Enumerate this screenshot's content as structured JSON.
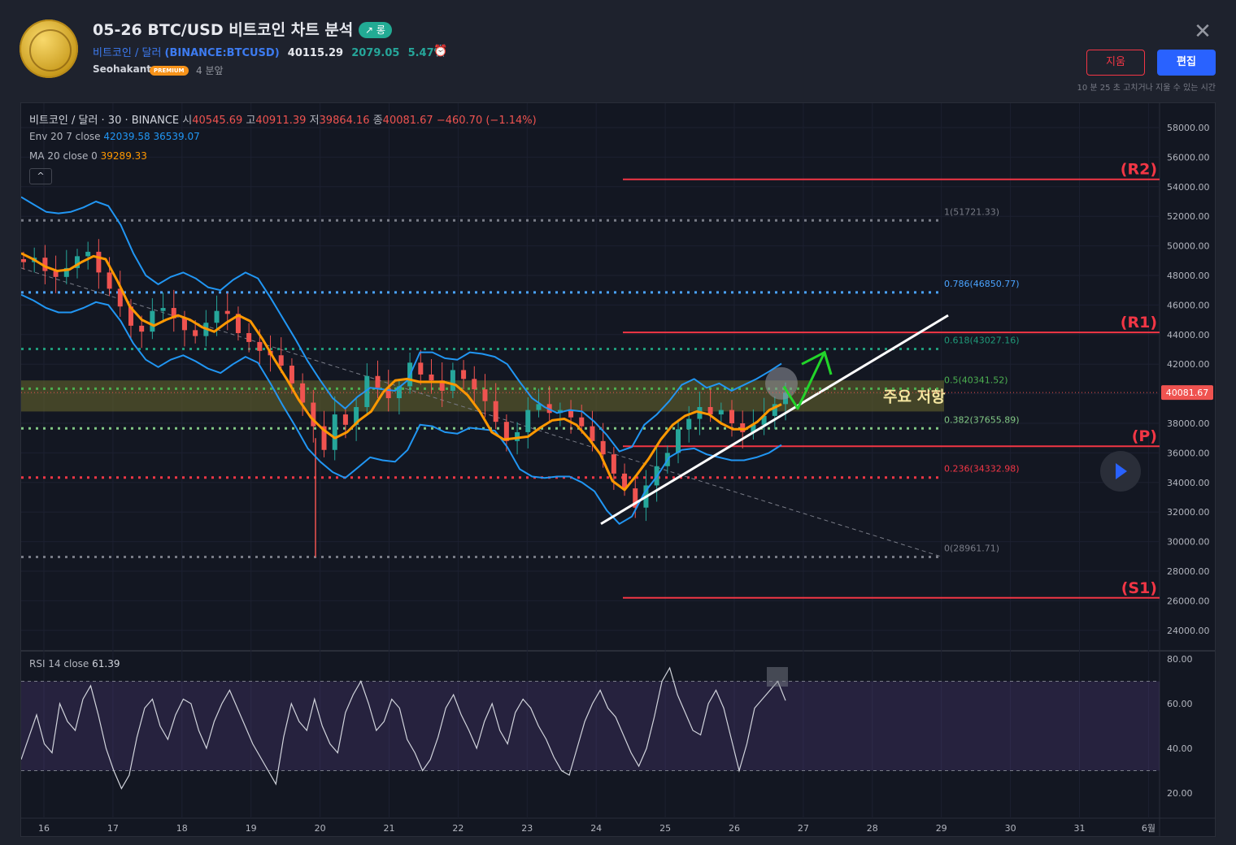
{
  "header": {
    "title": "05-26 BTC/USD 비트코인 차트 분석",
    "badge": "↗ 롱",
    "symbol_name": "비트코인 / 달러",
    "symbol_exchange": "(BINANCE:BTCUSD)",
    "last_price": "40115.29",
    "change": "2079.05",
    "change_pct": "5.47%",
    "author": "Seohakant",
    "premium_label": "PREMIUM",
    "time_ago": "4 분앞",
    "delete_label": "지움",
    "edit_label": "편집",
    "note": "10 분 25 초 고치거나 지울 수 있는 시간"
  },
  "legend": {
    "symbol": "비트코인 / 달러 · 30 · BINANCE",
    "o_label": "시",
    "o": "40545.69",
    "h_label": "고",
    "h": "40911.39",
    "l_label": "저",
    "l": "39864.16",
    "c_label": "종",
    "c": "40081.67",
    "chg": "−460.70 (−1.14%)",
    "env_label": "Env 20 7 close",
    "env_upper": "42039.58",
    "env_lower": "36539.07",
    "ma_label": "MA 20 close 0",
    "ma_value": "39289.33",
    "rsi_label": "RSI 14 close",
    "rsi_value": "61.39",
    "collapse": "^"
  },
  "colors": {
    "up": "#26a69a",
    "down": "#ef5350",
    "env": "#2196f3",
    "ma": "#ff9800",
    "rsi": "#d1d4dc",
    "resistance": "#f23645",
    "zone": "#6b6a2e",
    "trendline": "#ffffff",
    "arrow": "#22d42a"
  },
  "chart_data": {
    "type": "candlestick",
    "price_axis": {
      "min": 23000,
      "max": 59000,
      "ticks": [
        "58000.00",
        "56000.00",
        "54000.00",
        "52000.00",
        "50000.00",
        "48000.00",
        "46000.00",
        "44000.00",
        "42000.00",
        "40000.00",
        "38000.00",
        "36000.00",
        "34000.00",
        "32000.00",
        "30000.00",
        "28000.00",
        "26000.00",
        "24000.00"
      ],
      "last_price_label": "40081.67",
      "last_price": 40081.67
    },
    "time_axis": {
      "ticks": [
        "16",
        "17",
        "18",
        "19",
        "20",
        "21",
        "22",
        "23",
        "24",
        "25",
        "26",
        "27",
        "28",
        "29",
        "30",
        "31",
        "6월"
      ]
    },
    "fib_levels": [
      {
        "label": "1(51721.33)",
        "price": 51721.33,
        "color": "#787b86"
      },
      {
        "label": "0.786(46850.77)",
        "price": 46850.77,
        "color": "#4aa3ff"
      },
      {
        "label": "0.618(43027.16)",
        "price": 43027.16,
        "color": "#1f9b7a"
      },
      {
        "label": "0.5(40341.52)",
        "price": 40341.52,
        "color": "#4caf50"
      },
      {
        "label": "0.382(37655.89)",
        "price": 37655.89,
        "color": "#81c784"
      },
      {
        "label": "0.236(34332.98)",
        "price": 34332.98,
        "color": "#f23645"
      },
      {
        "label": "0(28961.71)",
        "price": 28961.71,
        "color": "#787b86"
      }
    ],
    "sr_levels": [
      {
        "label": "(R2)",
        "price": 54500
      },
      {
        "label": "(R1)",
        "price": 44150
      },
      {
        "label": "(P)",
        "price": 36450
      },
      {
        "label": "(S1)",
        "price": 26200
      }
    ],
    "zone": {
      "top": 40900,
      "bottom": 38800,
      "label": "주요 저항"
    },
    "close_series": [
      48900,
      49200,
      48300,
      47900,
      48500,
      49300,
      49600,
      48200,
      47100,
      45900,
      44600,
      44200,
      45600,
      45800,
      45100,
      44300,
      43900,
      44800,
      45600,
      45400,
      44100,
      43500,
      42900,
      42600,
      41900,
      40700,
      39400,
      37800,
      36200,
      38600,
      37900,
      39100,
      41200,
      40400,
      39700,
      40500,
      42100,
      41300,
      40900,
      40200,
      41600,
      41000,
      40300,
      39500,
      38100,
      36800,
      37400,
      38900,
      39300,
      38700,
      38900,
      38400,
      37800,
      36800,
      35900,
      34600,
      33600,
      32300,
      33800,
      35100,
      36000,
      37600,
      38300,
      39100,
      38600,
      38900,
      38000,
      37400,
      37900,
      38500,
      39300,
      40081.67
    ],
    "upper_band": [
      53300,
      52800,
      52300,
      52200,
      52300,
      52600,
      53000,
      52700,
      51400,
      49500,
      48000,
      47400,
      47900,
      48200,
      47800,
      47200,
      47000,
      47700,
      48200,
      47800,
      46500,
      45100,
      43700,
      42200,
      40900,
      39700,
      39000,
      39800,
      40400,
      40300,
      40200,
      40900,
      42800,
      42800,
      42400,
      42300,
      42800,
      42700,
      42500,
      42000,
      40800,
      39700,
      39100,
      38700,
      38900,
      38800,
      38100,
      37200,
      36100,
      36400,
      37900,
      38600,
      39500,
      40600,
      41000,
      40400,
      40700,
      40200,
      40600,
      41000,
      41500,
      42039.58
    ],
    "lower_band": [
      46700,
      46300,
      45800,
      45500,
      45500,
      45800,
      46200,
      46000,
      44900,
      43400,
      42300,
      41800,
      42300,
      42600,
      42200,
      41700,
      41400,
      42000,
      42500,
      42100,
      40700,
      39200,
      37800,
      36300,
      35400,
      34700,
      34300,
      35000,
      35700,
      35500,
      35400,
      36200,
      37900,
      37800,
      37400,
      37300,
      37700,
      37600,
      37500,
      36400,
      34900,
      34400,
      34300,
      34400,
      34400,
      34000,
      33400,
      32100,
      31200,
      31700,
      33300,
      34400,
      35700,
      36200,
      36300,
      35900,
      35700,
      35500,
      35500,
      35700,
      36000,
      36539.07
    ],
    "ma": [
      49500,
      49100,
      48600,
      48300,
      48400,
      48900,
      49300,
      49100,
      47600,
      45900,
      45000,
      44600,
      45000,
      45300,
      45000,
      44500,
      44200,
      44800,
      45300,
      44900,
      43700,
      42300,
      41000,
      39600,
      38400,
      37600,
      37000,
      37400,
      38200,
      38800,
      40100,
      40900,
      41000,
      40800,
      40800,
      40800,
      40600,
      39900,
      38800,
      37400,
      36900,
      37000,
      37100,
      37700,
      38200,
      38300,
      37900,
      37000,
      35900,
      34100,
      33500,
      34500,
      35600,
      36900,
      37900,
      38500,
      38800,
      38600,
      38000,
      37600,
      37600,
      38100,
      38900,
      39289.33
    ],
    "rsi": {
      "axis_ticks": [
        "80.00",
        "60.00",
        "40.00",
        "20.00"
      ],
      "upper": 70,
      "lower": 30,
      "values": [
        35,
        45,
        55,
        42,
        38,
        60,
        52,
        48,
        62,
        68,
        55,
        40,
        30,
        22,
        28,
        45,
        58,
        62,
        50,
        44,
        55,
        62,
        60,
        48,
        40,
        52,
        60,
        66,
        58,
        50,
        42,
        36,
        30,
        24,
        45,
        60,
        52,
        48,
        62,
        50,
        42,
        38,
        56,
        64,
        70,
        60,
        48,
        52,
        62,
        58,
        44,
        38,
        30,
        35,
        45,
        58,
        64,
        55,
        48,
        40,
        52,
        60,
        48,
        42,
        56,
        62,
        58,
        50,
        44,
        36,
        30,
        28,
        40,
        52,
        60,
        66,
        58,
        54,
        46,
        38,
        32,
        40,
        54,
        70,
        76,
        64,
        56,
        48,
        46,
        60,
        66,
        58,
        44,
        30,
        42,
        58,
        62,
        66,
        70,
        61.39
      ]
    },
    "title": "",
    "xlabel": "",
    "ylabel": ""
  }
}
